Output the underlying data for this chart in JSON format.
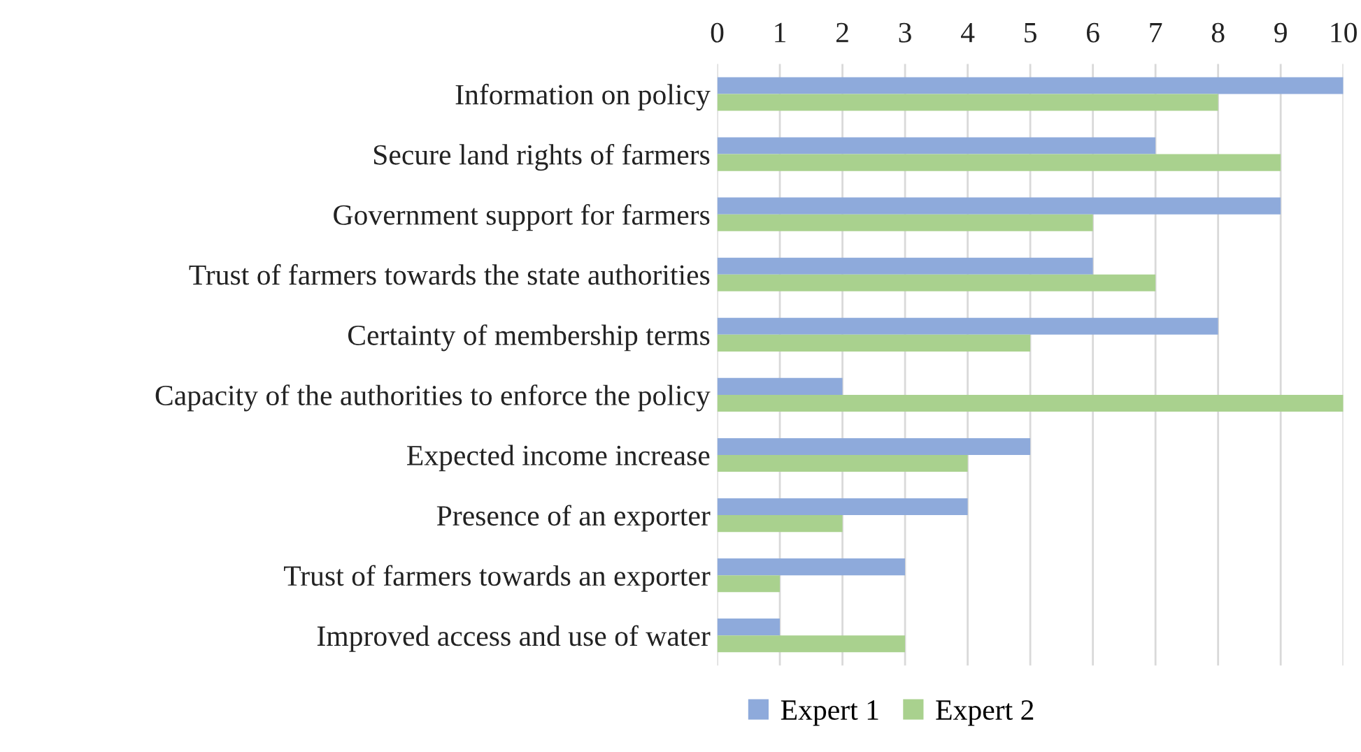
{
  "chart_data": {
    "type": "bar",
    "orientation": "horizontal",
    "categories": [
      "Information on policy",
      "Secure land rights of farmers",
      "Government support for farmers",
      "Trust of farmers towards the state authorities",
      "Certainty of membership terms",
      "Capacity of the authorities to enforce the policy",
      "Expected income increase",
      "Presence of an exporter",
      "Trust of farmers towards an exporter",
      "Improved access and use of water"
    ],
    "series": [
      {
        "name": "Expert 1",
        "color": "#8eaadb",
        "values": [
          10,
          7,
          9,
          6,
          8,
          2,
          5,
          4,
          3,
          1
        ]
      },
      {
        "name": "Expert 2",
        "color": "#a9d18e",
        "values": [
          8,
          9,
          6,
          7,
          5,
          10,
          4,
          2,
          1,
          3
        ]
      }
    ],
    "xlim": [
      0,
      10
    ],
    "xticks": [
      0,
      1,
      2,
      3,
      4,
      5,
      6,
      7,
      8,
      9,
      10
    ],
    "grid": "x",
    "legend": "bottom"
  }
}
